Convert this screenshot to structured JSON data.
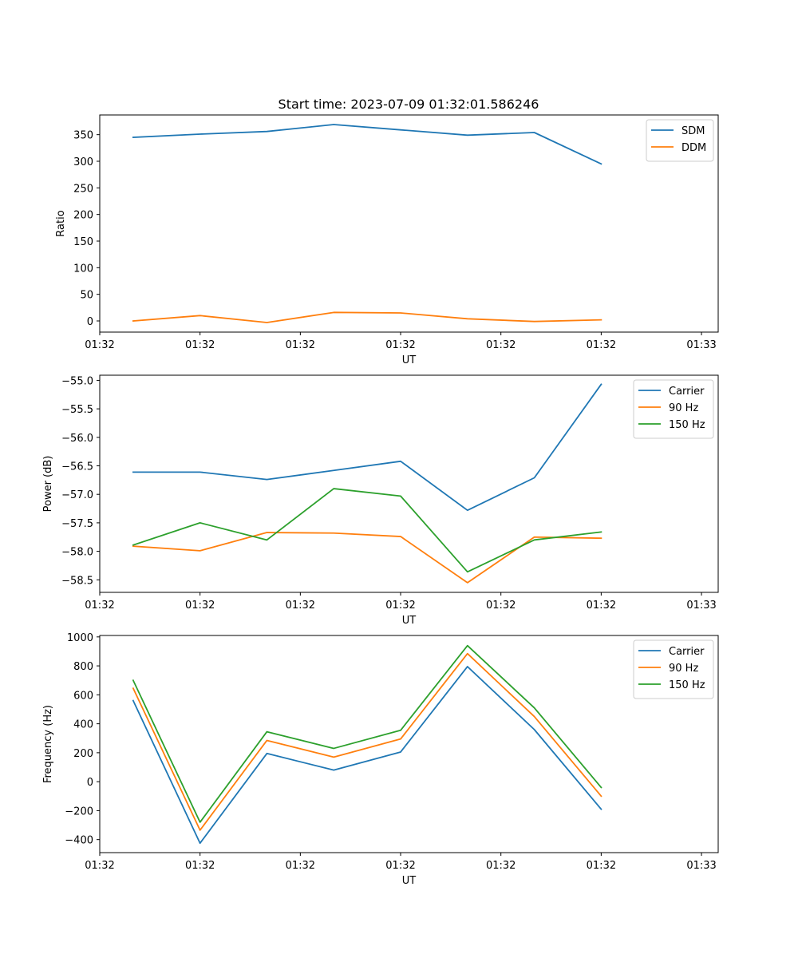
{
  "figure_title": "Start time: 2023-07-09 01:32:01.586246",
  "chart_data": [
    {
      "type": "line",
      "title": "Start time: 2023-07-09 01:32:01.586246",
      "xlabel": "UT",
      "ylabel": "Ratio",
      "x": [
        1,
        2,
        3,
        4,
        5,
        6,
        7,
        8
      ],
      "xlim": [
        0.5,
        9.75
      ],
      "xtick_positions": [
        0.5,
        2.0,
        3.5,
        5.0,
        6.5,
        8.0,
        9.5
      ],
      "xtick_labels": [
        "01:32",
        "01:32",
        "01:32",
        "01:32",
        "01:32",
        "01:32",
        "01:33"
      ],
      "ylim": [
        -21,
        387
      ],
      "yticks": [
        0,
        50,
        100,
        150,
        200,
        250,
        300,
        350
      ],
      "ytick_labels": [
        "0",
        "50",
        "100",
        "150",
        "200",
        "250",
        "300",
        "350"
      ],
      "legend_loc": "top-right",
      "series": [
        {
          "name": "SDM",
          "color": "#1f77b4",
          "values": [
            345,
            351,
            356,
            369,
            359,
            349,
            354,
            295
          ]
        },
        {
          "name": "DDM",
          "color": "#ff7f0e",
          "values": [
            0,
            10,
            -3,
            16,
            15,
            4,
            -1,
            2
          ]
        }
      ]
    },
    {
      "type": "line",
      "title": "",
      "xlabel": "UT",
      "ylabel": "Power (dB)",
      "x": [
        1,
        2,
        3,
        4,
        5,
        6,
        7,
        8
      ],
      "xlim": [
        0.5,
        9.75
      ],
      "xtick_positions": [
        0.5,
        2.0,
        3.5,
        5.0,
        6.5,
        8.0,
        9.5
      ],
      "xtick_labels": [
        "01:32",
        "01:32",
        "01:32",
        "01:32",
        "01:32",
        "01:32",
        "01:33"
      ],
      "ylim": [
        -58.72,
        -54.91
      ],
      "yticks": [
        -58.5,
        -58.0,
        -57.5,
        -57.0,
        -56.5,
        -56.0,
        -55.5,
        -55.0
      ],
      "ytick_labels": [
        "−58.5",
        "−58.0",
        "−57.5",
        "−57.0",
        "−56.5",
        "−56.0",
        "−55.5",
        "−55.0"
      ],
      "legend_loc": "top-right",
      "series": [
        {
          "name": "Carrier",
          "color": "#1f77b4",
          "values": [
            -56.61,
            -56.61,
            -56.74,
            -56.58,
            -56.42,
            -57.28,
            -56.71,
            -55.07
          ]
        },
        {
          "name": "90 Hz",
          "color": "#ff7f0e",
          "values": [
            -57.91,
            -57.99,
            -57.67,
            -57.68,
            -57.74,
            -58.55,
            -57.75,
            -57.77
          ]
        },
        {
          "name": "150 Hz",
          "color": "#2ca02c",
          "values": [
            -57.89,
            -57.5,
            -57.8,
            -56.9,
            -57.03,
            -58.36,
            -57.8,
            -57.66
          ]
        }
      ]
    },
    {
      "type": "line",
      "title": "",
      "xlabel": "UT",
      "ylabel": "Frequency (Hz)",
      "x": [
        1,
        2,
        3,
        4,
        5,
        6,
        7,
        8
      ],
      "xlim": [
        0.5,
        9.75
      ],
      "xtick_positions": [
        0.5,
        2.0,
        3.5,
        5.0,
        6.5,
        8.0,
        9.5
      ],
      "xtick_labels": [
        "01:32",
        "01:32",
        "01:32",
        "01:32",
        "01:32",
        "01:32",
        "01:33"
      ],
      "ylim": [
        -490,
        1010
      ],
      "yticks": [
        -400,
        -200,
        0,
        200,
        400,
        600,
        800,
        1000
      ],
      "ytick_labels": [
        "−400",
        "−200",
        "0",
        "200",
        "400",
        "600",
        "800",
        "1000"
      ],
      "legend_loc": "top-right",
      "series": [
        {
          "name": "Carrier",
          "color": "#1f77b4",
          "values": [
            560,
            -425,
            195,
            80,
            205,
            795,
            360,
            -190
          ]
        },
        {
          "name": "90 Hz",
          "color": "#ff7f0e",
          "values": [
            645,
            -335,
            285,
            170,
            295,
            885,
            450,
            -100
          ]
        },
        {
          "name": "150 Hz",
          "color": "#2ca02c",
          "values": [
            700,
            -280,
            345,
            230,
            355,
            940,
            510,
            -40
          ]
        }
      ]
    }
  ]
}
